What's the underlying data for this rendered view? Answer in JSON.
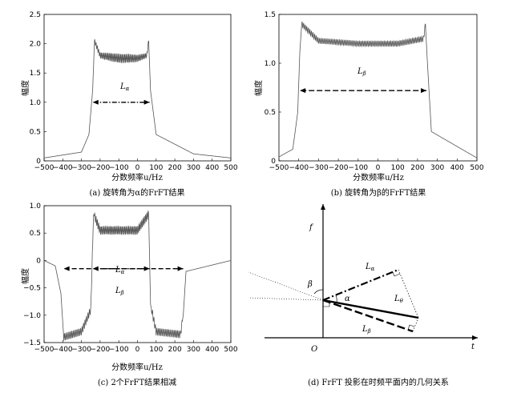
{
  "chart_data": [
    {
      "type": "line",
      "caption": "(a) 旋转角为α的FrFT结果",
      "xlabel": "分数频率u/Hz",
      "ylabel": "幅度",
      "xlim": [
        -500,
        500
      ],
      "ylim": [
        0,
        2.5
      ],
      "xticks": [
        -500,
        -400,
        -300,
        -200,
        -100,
        0,
        100,
        200,
        300,
        400,
        500
      ],
      "yticks": [
        0,
        0.5,
        1.0,
        1.5,
        2.0,
        2.5
      ],
      "ytick_labels": [
        "0",
        "0.5",
        "1.0",
        "1.5",
        "2.0",
        "2.5"
      ],
      "annotation": "Lα",
      "span": [
        -235,
        65
      ],
      "series": [
        {
          "x": [
            -500,
            -300,
            -260,
            -240,
            -230,
            -200,
            -100,
            0,
            50,
            60,
            70,
            100,
            300,
            500
          ],
          "values": [
            0.05,
            0.15,
            0.45,
            1.2,
            2.05,
            1.8,
            1.75,
            1.75,
            1.8,
            2.05,
            1.2,
            0.45,
            0.12,
            0.05
          ]
        }
      ]
    },
    {
      "type": "line",
      "caption": "(b) 旋转角为β的FrFT结果",
      "xlabel": "分数频率u/Hz",
      "ylabel": "幅度",
      "xlim": [
        -500,
        500
      ],
      "ylim": [
        0,
        1.5
      ],
      "xticks": [
        -500,
        -400,
        -300,
        -200,
        -100,
        0,
        100,
        200,
        300,
        400,
        500
      ],
      "yticks": [
        0,
        0.5,
        1.0,
        1.5
      ],
      "ytick_labels": [
        "0",
        "0.5",
        "1.0",
        "1.5"
      ],
      "annotation": "Lβ",
      "span": [
        -390,
        245
      ],
      "series": [
        {
          "x": [
            -500,
            -430,
            -405,
            -395,
            -385,
            -300,
            -100,
            0,
            100,
            230,
            240,
            250,
            270,
            500
          ],
          "values": [
            0.04,
            0.12,
            0.5,
            1.1,
            1.4,
            1.23,
            1.2,
            1.2,
            1.2,
            1.25,
            1.4,
            1.0,
            0.3,
            0.03
          ]
        }
      ]
    },
    {
      "type": "line",
      "caption": "(c) 2个FrFT结果相减",
      "xlabel": "分数频率u/Hz",
      "ylabel": "幅度",
      "xlim": [
        -500,
        500
      ],
      "ylim": [
        -1.5,
        1.0
      ],
      "xticks": [
        -500,
        -400,
        -300,
        -200,
        -100,
        0,
        100,
        200,
        300,
        400,
        500
      ],
      "yticks": [
        -1.5,
        -1.0,
        -0.5,
        0,
        0.5,
        1.0
      ],
      "ytick_labels": [
        "-1.5",
        "-1.0",
        "-0.5",
        "0",
        "0.5",
        "1.0"
      ],
      "annotations": [
        "Lα",
        "Lβ"
      ],
      "spans": [
        [
          -235,
          65
        ],
        [
          -390,
          245
        ]
      ],
      "series": [
        {
          "x": [
            -500,
            -440,
            -410,
            -395,
            -300,
            -250,
            -235,
            -200,
            -100,
            0,
            60,
            70,
            100,
            230,
            245,
            260,
            500
          ],
          "values": [
            0.0,
            -0.1,
            -0.6,
            -1.4,
            -1.3,
            -0.9,
            0.85,
            0.55,
            0.55,
            0.55,
            0.85,
            -0.8,
            -1.3,
            -1.35,
            -1.0,
            -0.2,
            0.0
          ]
        }
      ]
    }
  ],
  "diagram_d": {
    "caption": "(d) FrFT 投影在时频平面内的几何关系",
    "f_label": "f",
    "t_label": "t",
    "origin_label": "O",
    "beta_label": "β",
    "alpha_label": "α",
    "L_alpha": "Lα",
    "L_theta": "Lθ",
    "L_beta": "Lβ"
  }
}
